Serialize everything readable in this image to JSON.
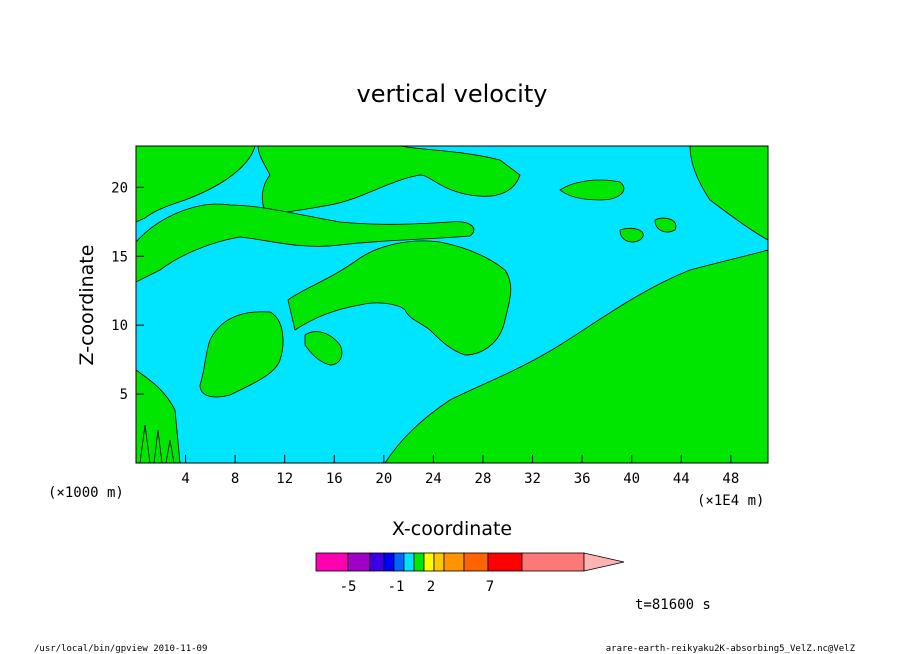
{
  "chart_data": {
    "type": "contour",
    "title": "vertical velocity",
    "xlabel": "X-coordinate",
    "ylabel": "Z-coordinate",
    "x_unit_label": "(×1000 m)",
    "x_scale_label": "(×1E4 m)",
    "x_ticks": [
      4,
      8,
      12,
      16,
      20,
      24,
      28,
      32,
      36,
      40,
      44,
      48
    ],
    "y_ticks": [
      5,
      10,
      15,
      20
    ],
    "xlim": [
      0,
      51
    ],
    "ylim": [
      0,
      23
    ],
    "fill_regions": [
      {
        "level": "-1 to 0",
        "color": "#00e5ff"
      },
      {
        "level": "0 to 1",
        "color": "#00e600"
      }
    ],
    "colorbar": {
      "colors": [
        "#ff00b0",
        "#a000c8",
        "#3c00e6",
        "#0000ff",
        "#0066ff",
        "#00e5ff",
        "#00e600",
        "#ffff00",
        "#ffc800",
        "#ff9600",
        "#ff6400",
        "#ff0000",
        "#ff7878",
        "#ffb4b4"
      ],
      "labels": [
        "-5",
        "-1",
        "2",
        "7"
      ]
    },
    "time_label": "t=81600 s"
  },
  "footer": {
    "left": "/usr/local/bin/gpview  2010-11-09",
    "right": "arare-earth-reikyaku2K-absorbing5_VelZ.nc@VelZ"
  }
}
